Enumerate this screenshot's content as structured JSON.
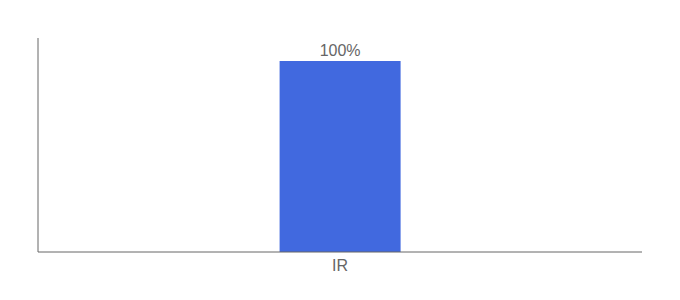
{
  "chart_data": {
    "type": "bar",
    "categories": [
      "IR"
    ],
    "values": [
      100
    ],
    "value_labels": [
      "100%"
    ],
    "data_labels": true,
    "color": "#4169df",
    "ylim": [
      0,
      112
    ],
    "tick_labels": "x",
    "grid": false
  }
}
